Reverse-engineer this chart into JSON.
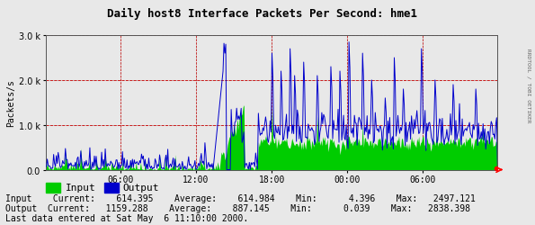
{
  "title": "Daily host8 Interface Packets Per Second: hme1",
  "ylabel": "Packets/s",
  "x_ticks_labels": [
    "06:00",
    "12:00",
    "18:00",
    "00:00",
    "06:00"
  ],
  "ylim": [
    0,
    3000
  ],
  "yticks": [
    0,
    1000,
    2000,
    3000
  ],
  "ytick_labels": [
    "0.0",
    "1.0 k",
    "2.0 k",
    "3.0 k"
  ],
  "bg_color": "#e8e8e8",
  "plot_bg_color": "#e8e8e8",
  "grid_color": "#b0b0b0",
  "input_color": "#00cc00",
  "output_color": "#0000cc",
  "legend_input": "Input",
  "legend_output": "Output",
  "stats_line1": "Input    Current:    614.395    Average:    614.984    Min:      4.396    Max:   2497.121",
  "stats_line2": "Output  Current:   1159.288    Average:    887.145    Min:      0.039    Max:   2838.398",
  "last_data": "Last data entered at Sat May  6 11:10:00 2000.",
  "watermark": "RRDTOOL / TOBI OETIKER",
  "n_points": 500,
  "red_dashed_color": "#cc0000",
  "border_color": "#555555"
}
